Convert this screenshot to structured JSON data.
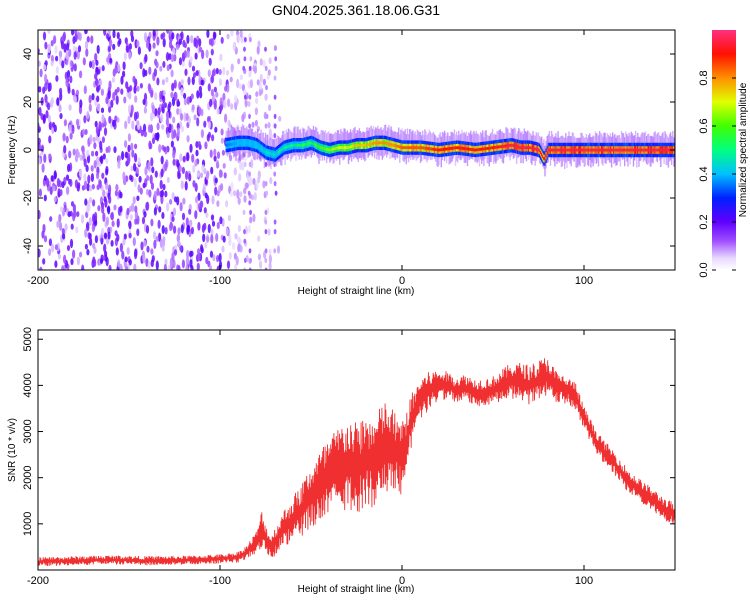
{
  "title": "GN04.2025.361.18.06.G31",
  "chart_data": [
    {
      "type": "heatmap",
      "title": "GN04.2025.361.18.06.G31",
      "xlabel": "Height of straight line (km)",
      "ylabel": "Frequency (Hz)",
      "xlim": [
        -200,
        150
      ],
      "ylim": [
        -50,
        50
      ],
      "xticks": [
        -200,
        -100,
        0,
        100
      ],
      "yticks": [
        -40,
        -20,
        0,
        20,
        40
      ],
      "colorbar": {
        "label": "Normalized spectral amplitude",
        "ticks": [
          0.0,
          0.2,
          0.4,
          0.6,
          0.8
        ],
        "range": [
          0,
          1
        ],
        "colors": [
          "#ffffff",
          "#c8a0ff",
          "#8000ff",
          "#0000ff",
          "#00e0ff",
          "#00ff40",
          "#ffff00",
          "#ff8000",
          "#ff0000",
          "#ff2a80"
        ]
      },
      "noise_region_km": [
        -200,
        -95
      ],
      "ridge": {
        "x_km": [
          -97,
          -90,
          -85,
          -80,
          -75,
          -70,
          -65,
          -60,
          -55,
          -50,
          -45,
          -40,
          -35,
          -30,
          -25,
          -20,
          -15,
          -10,
          -5,
          0,
          10,
          20,
          30,
          40,
          50,
          60,
          65,
          70,
          75,
          78,
          80,
          85,
          90,
          100,
          110,
          120,
          130,
          140,
          150
        ],
        "freq_hz": [
          2,
          3,
          3,
          2,
          -1,
          -2,
          1,
          2,
          2,
          3,
          1,
          0,
          1,
          1,
          2,
          2,
          3,
          3,
          2,
          1,
          1,
          0,
          1,
          0,
          1,
          2,
          1,
          1,
          0,
          -4,
          0,
          0,
          0,
          0,
          0,
          0,
          0,
          0,
          0
        ],
        "amplitude": [
          0.35,
          0.4,
          0.4,
          0.4,
          0.45,
          0.45,
          0.5,
          0.5,
          0.55,
          0.55,
          0.6,
          0.65,
          0.7,
          0.7,
          0.75,
          0.75,
          0.8,
          0.8,
          0.8,
          0.85,
          0.85,
          0.9,
          0.9,
          0.9,
          0.9,
          0.95,
          0.95,
          0.95,
          0.95,
          0.9,
          0.95,
          0.95,
          0.95,
          0.95,
          0.95,
          0.95,
          0.95,
          0.95,
          0.95
        ]
      }
    },
    {
      "type": "line",
      "xlabel": "Height of straight line (km)",
      "ylabel": "SNR (10 * v/v)",
      "xlim": [
        -200,
        150
      ],
      "ylim": [
        0,
        5200
      ],
      "xticks": [
        -200,
        -100,
        0,
        100
      ],
      "yticks": [
        1000,
        2000,
        3000,
        4000,
        5000
      ],
      "color": "#f03030",
      "series": [
        {
          "name": "SNR",
          "x": [
            -200,
            -180,
            -160,
            -140,
            -120,
            -100,
            -90,
            -85,
            -80,
            -77,
            -75,
            -72,
            -70,
            -65,
            -60,
            -55,
            -50,
            -45,
            -40,
            -35,
            -30,
            -25,
            -20,
            -15,
            -10,
            -5,
            0,
            5,
            10,
            15,
            20,
            25,
            30,
            35,
            40,
            45,
            50,
            55,
            60,
            65,
            70,
            75,
            80,
            85,
            90,
            95,
            100,
            105,
            110,
            115,
            120,
            125,
            130,
            135,
            140,
            145,
            150
          ],
          "y": [
            180,
            200,
            220,
            200,
            210,
            240,
            280,
            400,
            600,
            900,
            700,
            500,
            600,
            900,
            1100,
            1300,
            1600,
            1800,
            2000,
            2200,
            2300,
            2200,
            2400,
            2300,
            2700,
            2600,
            2400,
            3200,
            3700,
            3900,
            4000,
            4000,
            3900,
            3950,
            3850,
            3850,
            3900,
            4000,
            4100,
            4100,
            4000,
            4100,
            4200,
            3950,
            3900,
            3800,
            3300,
            2900,
            2600,
            2400,
            2150,
            1900,
            1750,
            1600,
            1450,
            1300,
            1200
          ],
          "noise_amplitude": [
            100,
            100,
            100,
            100,
            100,
            100,
            120,
            150,
            250,
            400,
            300,
            250,
            300,
            400,
            500,
            600,
            700,
            800,
            900,
            900,
            1000,
            1000,
            1000,
            1000,
            1000,
            900,
            800,
            600,
            500,
            400,
            350,
            300,
            300,
            300,
            300,
            300,
            300,
            350,
            400,
            400,
            450,
            450,
            450,
            350,
            300,
            300,
            250,
            250,
            250,
            250,
            250,
            250,
            250,
            250,
            250,
            250,
            250
          ]
        }
      ]
    }
  ]
}
